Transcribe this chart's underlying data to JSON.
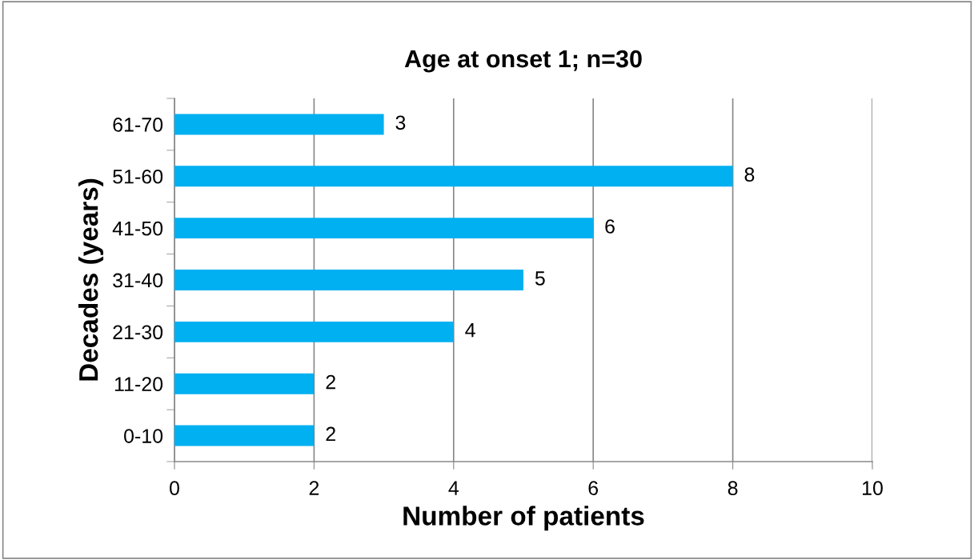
{
  "chart_data": {
    "type": "bar",
    "orientation": "horizontal",
    "title": "Age at onset 1; n=30",
    "xlabel": "Number of patients",
    "ylabel": "Decades (years)",
    "categories": [
      "61-70",
      "51-60",
      "41-50",
      "31-40",
      "21-30",
      "11-20",
      "0-10"
    ],
    "values": [
      3,
      8,
      6,
      5,
      4,
      2,
      2
    ],
    "color": "#00b0f0",
    "xlim": [
      0,
      10
    ],
    "xticks": [
      0,
      2,
      4,
      6,
      8,
      10
    ],
    "grid": "x",
    "data_labels": true
  }
}
